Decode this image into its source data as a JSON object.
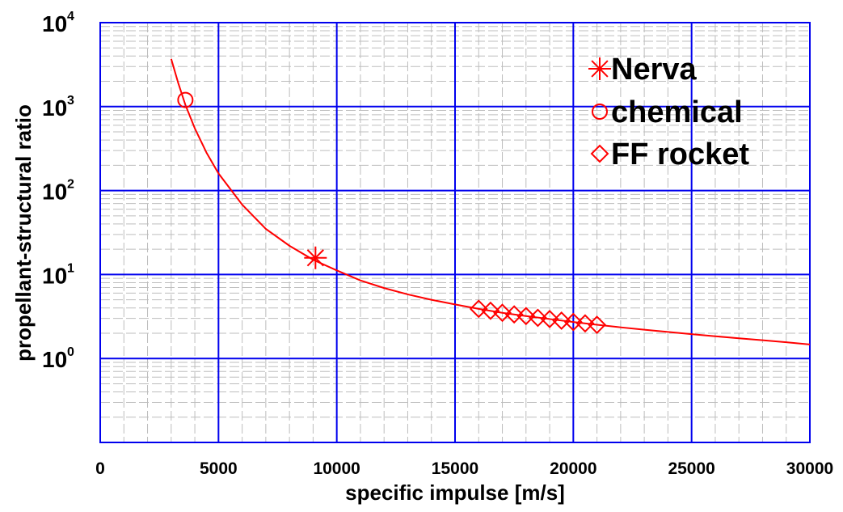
{
  "colors": {
    "grid_major": "#0000ee",
    "grid_minor": "#bdbdbd",
    "series": "#ff0000"
  },
  "chart_data": {
    "type": "scatter",
    "xlabel": "specific impulse [m/s]",
    "ylabel": "propellant-structural ratio",
    "xlim": [
      0,
      30000
    ],
    "ylim": [
      0.1,
      10000
    ],
    "yscale": "log",
    "grid": true,
    "legend_position": "top-right",
    "x_ticks": [
      "0",
      "5000",
      "10000",
      "15000",
      "20000",
      "25000",
      "30000"
    ],
    "y_ticks": [
      {
        "base": "10",
        "exp": "0",
        "value": 1
      },
      {
        "base": "10",
        "exp": "1",
        "value": 10
      },
      {
        "base": "10",
        "exp": "2",
        "value": 100
      },
      {
        "base": "10",
        "exp": "3",
        "value": 1000
      },
      {
        "base": "10",
        "exp": "4",
        "value": 10000
      }
    ],
    "curve": {
      "x": [
        3000,
        3300,
        3600,
        4000,
        4500,
        5000,
        6000,
        7000,
        8000,
        9000,
        10000,
        11000,
        12000,
        13000,
        14000,
        15000,
        16000,
        17000,
        18000,
        19000,
        20000,
        21000,
        22000,
        23000,
        24000,
        25000,
        26000,
        27000,
        28000,
        29000,
        30000
      ],
      "y": [
        3700,
        1900,
        1050,
        550,
        280,
        160,
        68,
        35,
        22,
        15,
        11.2,
        8.5,
        6.9,
        5.8,
        5.0,
        4.4,
        3.9,
        3.5,
        3.2,
        2.95,
        2.72,
        2.52,
        2.35,
        2.2,
        2.07,
        1.95,
        1.84,
        1.74,
        1.65,
        1.56,
        1.47
      ]
    },
    "series": [
      {
        "name": "Nerva",
        "marker": "asterisk",
        "x": [
          9100
        ],
        "y": [
          15.8
        ]
      },
      {
        "name": "chemical",
        "marker": "circle",
        "x": [
          3600
        ],
        "y": [
          1200
        ]
      },
      {
        "name": "FF rocket",
        "marker": "diamond",
        "x": [
          16000,
          16500,
          17000,
          17500,
          18000,
          18500,
          19000,
          19500,
          20000,
          20500,
          21000
        ],
        "y": [
          3.9,
          3.7,
          3.5,
          3.35,
          3.2,
          3.05,
          2.95,
          2.82,
          2.72,
          2.62,
          2.52
        ]
      }
    ]
  }
}
